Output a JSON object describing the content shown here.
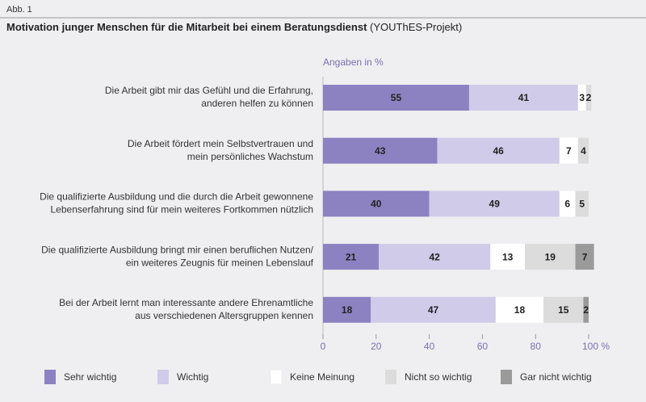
{
  "header": "Abb. 1",
  "chart_data": {
    "type": "stacked_barh",
    "title": "Motivation junger Menschen für die Mitarbeit bei einem Beratungsdienst",
    "subtitle": "(YOUThES-Projekt)",
    "xlabel": "Angaben in %",
    "categories": [
      [
        "Die Arbeit gibt mir das Gefühl und die Erfahrung,",
        "anderen helfen zu können"
      ],
      [
        "Die Arbeit fördert mein Selbstvertrauen und",
        "mein persönliches Wachstum"
      ],
      [
        "Die qualifizierte Ausbildung und die durch die Arbeit gewonnene",
        "Lebenserfahrung sind für mein weiteres Fortkommen nützlich"
      ],
      [
        "Die qualifizierte Ausbildung bringt mir einen beruflichen Nutzen/",
        "ein weiteres Zeugnis für meinen Lebenslauf"
      ],
      [
        "Bei der Arbeit lernt man interessante andere Ehrenamtliche",
        "aus verschiedenen Altersgruppen kennen"
      ]
    ],
    "series": [
      {
        "name": "Sehr wichtig",
        "color": "#8c82c2",
        "values": [
          55,
          43,
          40,
          21,
          18
        ]
      },
      {
        "name": "Wichtig",
        "color": "#d0cbe8",
        "values": [
          41,
          46,
          49,
          42,
          47
        ]
      },
      {
        "name": "Keine Meinung",
        "color": "#ffffff",
        "values": [
          3,
          7,
          6,
          13,
          18
        ]
      },
      {
        "name": "Nicht so wichtig",
        "color": "#dcdcdc",
        "values": [
          2,
          4,
          5,
          19,
          15
        ]
      },
      {
        "name": "Gar nicht wichtig",
        "color": "#9a9a9a",
        "values": [
          null,
          null,
          null,
          7,
          2
        ]
      }
    ],
    "xlim": [
      0,
      100
    ],
    "xticks": [
      0,
      20,
      40,
      60,
      80,
      {
        "value": 100,
        "label": "100 %"
      }
    ]
  }
}
